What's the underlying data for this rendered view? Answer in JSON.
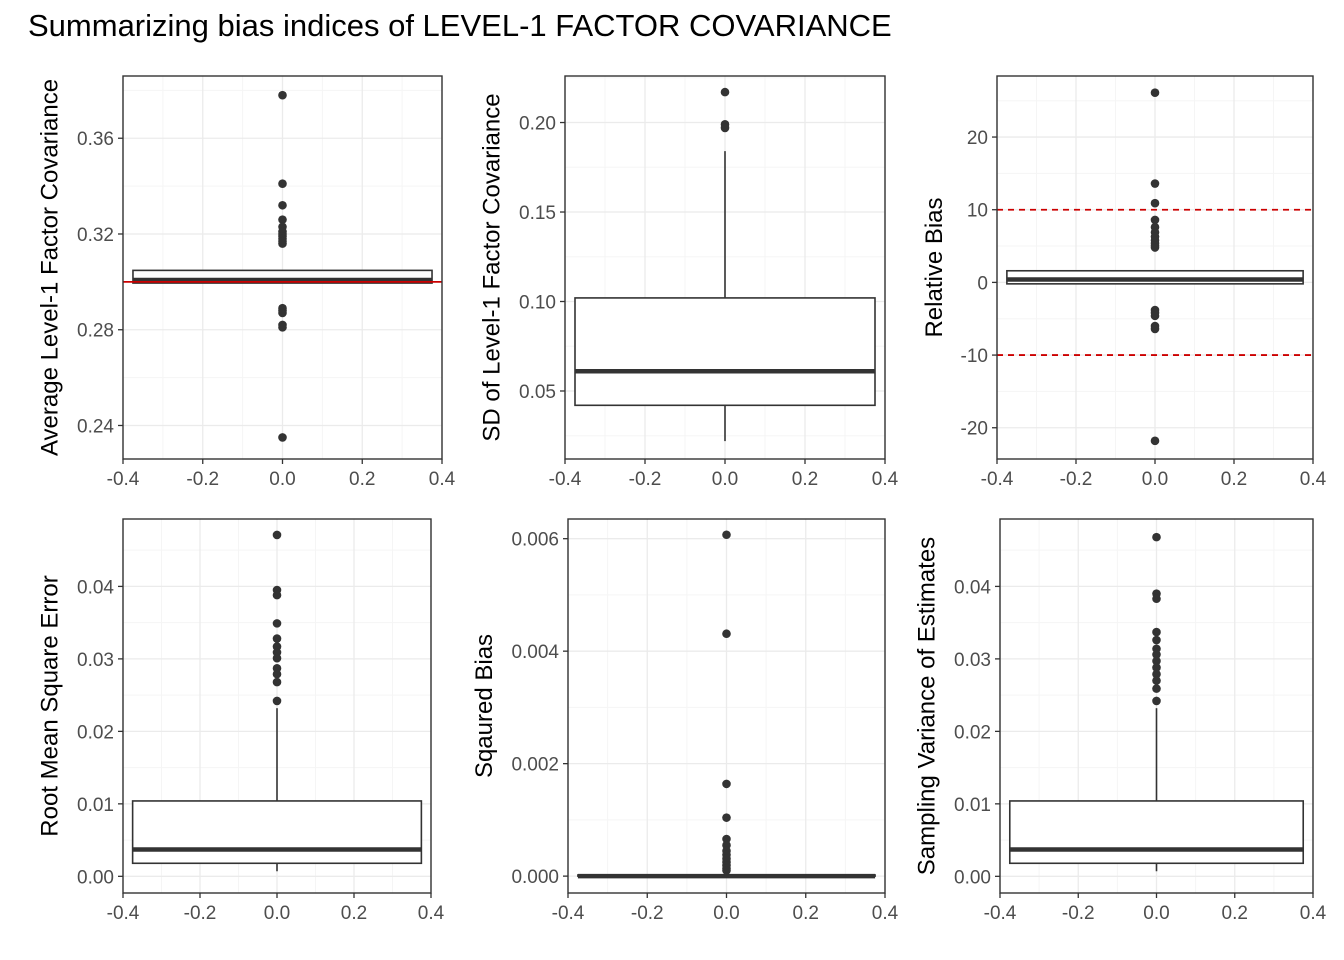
{
  "title": "Summarizing bias indices of LEVEL-1 FACTOR COVARIANCE",
  "colors": {
    "panel_border": "#333333",
    "box": "#333333",
    "grid_major": "#ebebeb",
    "grid_minor": "#f5f5f5",
    "reference": "#cc0000",
    "tick_label": "#4d4d4d"
  },
  "chart_data": [
    {
      "type": "boxplot",
      "ylabel": "Average Level-1 Factor Covariance",
      "xlim": [
        -0.4,
        0.4
      ],
      "ylim": [
        0.226,
        0.386
      ],
      "xticks": [
        -0.4,
        -0.2,
        0.0,
        0.2,
        0.4
      ],
      "xtick_labels": [
        "-0.4",
        "-0.2",
        "0.0",
        "0.2",
        "0.4"
      ],
      "yticks": [
        0.24,
        0.28,
        0.32,
        0.36
      ],
      "ytick_labels": [
        "0.24",
        "0.28",
        "0.32",
        "0.36"
      ],
      "box": {
        "x0": -0.375,
        "x1": 0.375,
        "q1": 0.2995,
        "median": 0.3008,
        "q3": 0.3048,
        "whisker_low": 0.2995,
        "whisker_high": 0.3048
      },
      "outliers": [
        0.378,
        0.341,
        0.332,
        0.326,
        0.323,
        0.321,
        0.32,
        0.319,
        0.318,
        0.317,
        0.316,
        0.289,
        0.288,
        0.287,
        0.282,
        0.281,
        0.235
      ],
      "reference_lines": [
        {
          "y": 0.3,
          "style": "solid"
        }
      ],
      "grid": true
    },
    {
      "type": "boxplot",
      "ylabel": "SD of Level-1 Factor Covariance",
      "xlim": [
        -0.4,
        0.4
      ],
      "ylim": [
        0.012,
        0.226
      ],
      "xticks": [
        -0.4,
        -0.2,
        0.0,
        0.2,
        0.4
      ],
      "xtick_labels": [
        "-0.4",
        "-0.2",
        "0.0",
        "0.2",
        "0.4"
      ],
      "yticks": [
        0.05,
        0.1,
        0.15,
        0.2
      ],
      "ytick_labels": [
        "0.05",
        "0.10",
        "0.15",
        "0.20"
      ],
      "box": {
        "x0": -0.375,
        "x1": 0.375,
        "q1": 0.042,
        "median": 0.061,
        "q3": 0.102,
        "whisker_low": 0.022,
        "whisker_high": 0.184
      },
      "outliers": [
        0.217,
        0.199,
        0.197
      ],
      "reference_lines": [],
      "grid": true
    },
    {
      "type": "boxplot",
      "ylabel": "Relative Bias",
      "xlim": [
        -0.4,
        0.4
      ],
      "ylim": [
        -24.3,
        28.4
      ],
      "xticks": [
        -0.4,
        -0.2,
        0.0,
        0.2,
        0.4
      ],
      "xtick_labels": [
        "-0.4",
        "-0.2",
        "0.0",
        "0.2",
        "0.4"
      ],
      "yticks": [
        -20,
        -10,
        0,
        10,
        20
      ],
      "ytick_labels": [
        "-20",
        "-10",
        "0",
        "10",
        "20"
      ],
      "box": {
        "x0": -0.375,
        "x1": 0.375,
        "q1": -0.2,
        "median": 0.4,
        "q3": 1.6,
        "whisker_low": -0.2,
        "whisker_high": 1.6
      },
      "outliers": [
        26.1,
        13.6,
        10.9,
        8.6,
        7.6,
        6.9,
        6.3,
        5.8,
        5.4,
        5.1,
        4.8,
        -3.8,
        -4.2,
        -4.6,
        -6.0,
        -6.4,
        -21.8
      ],
      "reference_lines": [
        {
          "y": 10,
          "style": "dashed"
        },
        {
          "y": -10,
          "style": "dashed"
        }
      ],
      "grid": true
    },
    {
      "type": "boxplot",
      "ylabel": "Root Mean Square Error",
      "xlim": [
        -0.4,
        0.4
      ],
      "ylim": [
        -0.0023,
        0.0493
      ],
      "xticks": [
        -0.4,
        -0.2,
        0.0,
        0.2,
        0.4
      ],
      "xtick_labels": [
        "-0.4",
        "-0.2",
        "0.0",
        "0.2",
        "0.4"
      ],
      "yticks": [
        0.0,
        0.01,
        0.02,
        0.03,
        0.04
      ],
      "ytick_labels": [
        "0.00",
        "0.01",
        "0.02",
        "0.03",
        "0.04"
      ],
      "box": {
        "x0": -0.375,
        "x1": 0.375,
        "q1": 0.0018,
        "median": 0.0037,
        "q3": 0.0104,
        "whisker_low": 0.0007,
        "whisker_high": 0.0232
      },
      "outliers": [
        0.0471,
        0.0395,
        0.0388,
        0.0349,
        0.0328,
        0.0317,
        0.0309,
        0.0301,
        0.0287,
        0.0279,
        0.0268,
        0.0242
      ],
      "reference_lines": [],
      "grid": true
    },
    {
      "type": "boxplot",
      "ylabel": "Sqaured Bias",
      "xlim": [
        -0.4,
        0.4
      ],
      "ylim": [
        -0.0003,
        0.00635
      ],
      "xticks": [
        -0.4,
        -0.2,
        0.0,
        0.2,
        0.4
      ],
      "xtick_labels": [
        "-0.4",
        "-0.2",
        "0.0",
        "0.2",
        "0.4"
      ],
      "yticks": [
        0.0,
        0.002,
        0.004,
        0.006
      ],
      "ytick_labels": [
        "0.000",
        "0.002",
        "0.004",
        "0.006"
      ],
      "box": {
        "x0": -0.375,
        "x1": 0.375,
        "q1": 0.0,
        "median": 0.0,
        "q3": 2e-05,
        "whisker_low": 0.0,
        "whisker_high": 4e-05
      },
      "outliers": [
        0.00607,
        0.00431,
        0.00164,
        0.00104,
        0.00066,
        0.00055,
        0.00045,
        0.00038,
        0.00031,
        0.00025,
        0.00019,
        0.00014,
        0.0001
      ],
      "reference_lines": [],
      "grid": true
    },
    {
      "type": "boxplot",
      "ylabel": "Sampling Variance of Estimates",
      "xlim": [
        -0.4,
        0.4
      ],
      "ylim": [
        -0.0023,
        0.0493
      ],
      "xticks": [
        -0.4,
        -0.2,
        0.0,
        0.2,
        0.4
      ],
      "xtick_labels": [
        "-0.4",
        "-0.2",
        "0.0",
        "0.2",
        "0.4"
      ],
      "yticks": [
        0.0,
        0.01,
        0.02,
        0.03,
        0.04
      ],
      "ytick_labels": [
        "0.00",
        "0.01",
        "0.02",
        "0.03",
        "0.04"
      ],
      "box": {
        "x0": -0.375,
        "x1": 0.375,
        "q1": 0.0018,
        "median": 0.0037,
        "q3": 0.0104,
        "whisker_low": 0.0007,
        "whisker_high": 0.0232
      },
      "outliers": [
        0.0468,
        0.039,
        0.0383,
        0.0337,
        0.0326,
        0.0314,
        0.0306,
        0.0297,
        0.0288,
        0.0279,
        0.027,
        0.0259,
        0.0242
      ],
      "reference_lines": [],
      "grid": true
    }
  ]
}
